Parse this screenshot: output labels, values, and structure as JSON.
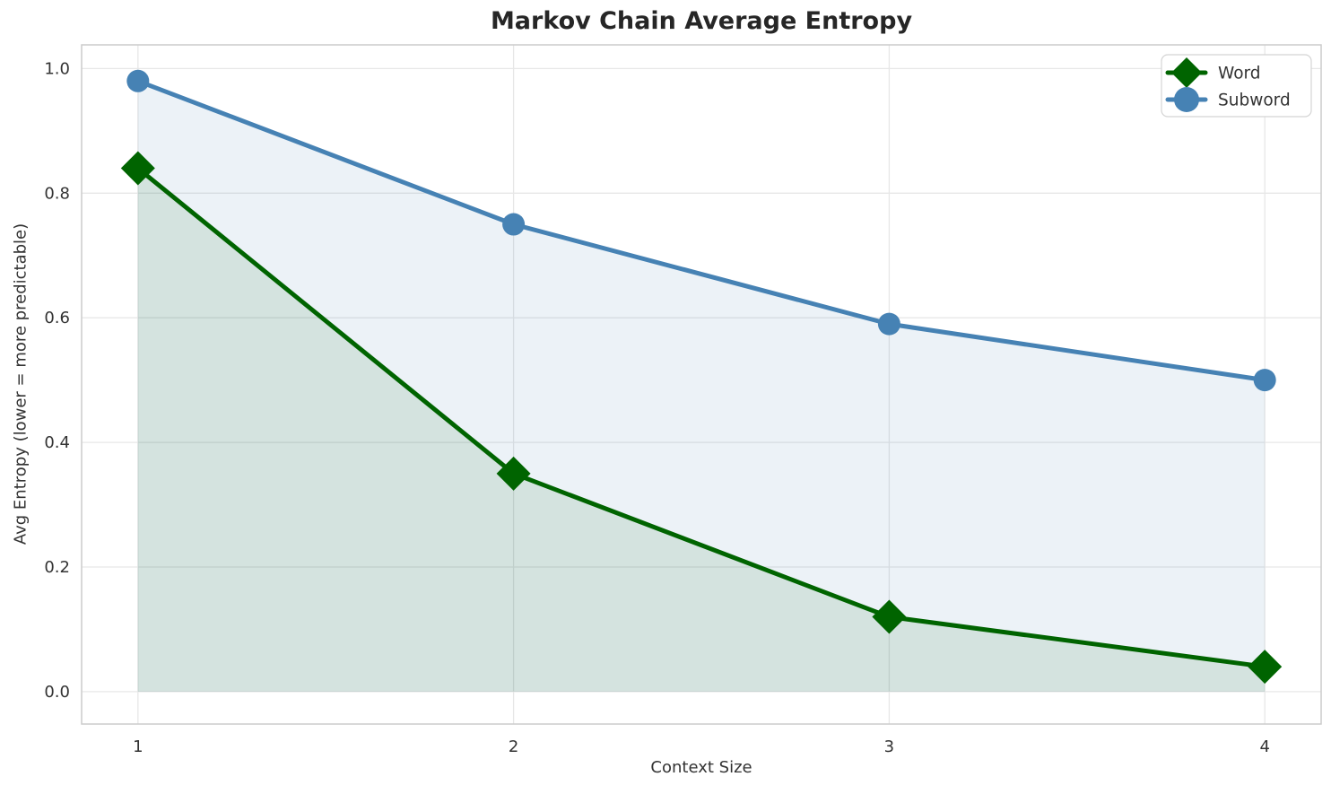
{
  "chart_data": {
    "type": "line",
    "title": "Markov Chain Average Entropy",
    "xlabel": "Context Size",
    "ylabel": "Avg Entropy (lower = more predictable)",
    "x": [
      1,
      2,
      3,
      4
    ],
    "series": [
      {
        "name": "Word",
        "values": [
          0.84,
          0.35,
          0.12,
          0.04
        ],
        "color": "#006400",
        "fill_alpha": 0.1,
        "marker": "diamond",
        "area": true
      },
      {
        "name": "Subword",
        "values": [
          0.98,
          0.75,
          0.59,
          0.5
        ],
        "color": "#4682b4",
        "fill_alpha": 0.1,
        "marker": "circle",
        "area": true
      }
    ],
    "area_baseline": 0,
    "xticks": {
      "values": [
        1,
        2,
        3,
        4
      ],
      "labels": [
        "1",
        "2",
        "3",
        "4"
      ]
    },
    "yticks": {
      "values": [
        0.0,
        0.2,
        0.4,
        0.6,
        0.8,
        1.0
      ],
      "labels": [
        "0.0",
        "0.2",
        "0.4",
        "0.6",
        "0.8",
        "1.0"
      ]
    },
    "xlim": [
      0.85,
      4.15
    ],
    "ylim": [
      -0.052,
      1.038
    ],
    "grid": true,
    "legend": {
      "position": "upper right",
      "entries": [
        "Word",
        "Subword"
      ]
    },
    "styles": {
      "grid_color": "#e7e7e7",
      "spine_color": "#cccccc",
      "title_color": "#262626",
      "text_color": "#333333",
      "legend_border_color": "#d4d4d4",
      "background": "#ffffff",
      "line_width": 5
    }
  }
}
